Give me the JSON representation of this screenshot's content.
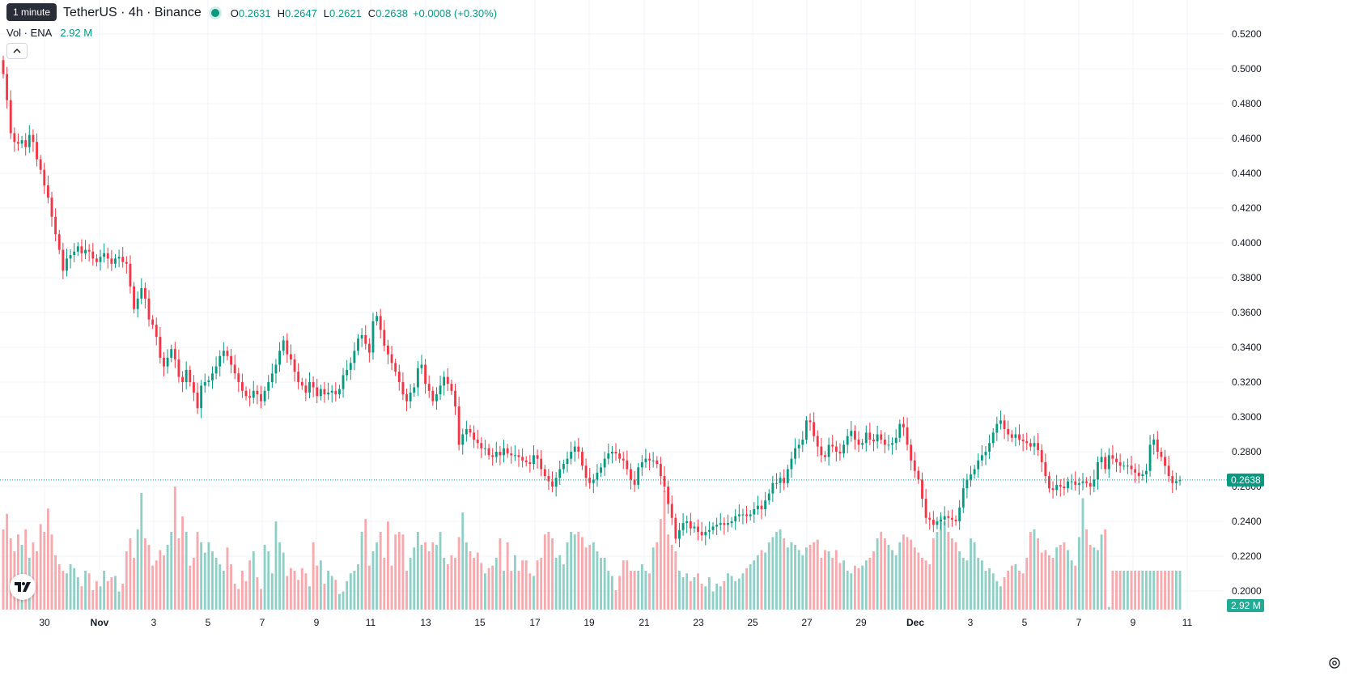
{
  "header": {
    "interval_tooltip": "1 minute",
    "symbol": "TetherUS · 4h · Binance",
    "ohlc": {
      "o_label": "O",
      "o_value": "0.2631",
      "h_label": "H",
      "h_value": "0.2647",
      "l_label": "L",
      "l_value": "0.2621",
      "c_label": "C",
      "c_value": "0.2638",
      "change": "+0.0008 (+0.30%)"
    },
    "volume": {
      "label": "Vol · ENA",
      "value": "2.92 M"
    }
  },
  "colors": {
    "up": "#089981",
    "down": "#f23645",
    "up_vol": "#8fd0c6",
    "down_vol": "#f7a9ad",
    "grid": "#f0f3fa",
    "text": "#131722"
  },
  "chart_data": {
    "type": "candlestick",
    "y_axis": {
      "ticks": [
        "0.5200",
        "0.5000",
        "0.4800",
        "0.4600",
        "0.4400",
        "0.4200",
        "0.4000",
        "0.3800",
        "0.3600",
        "0.3400",
        "0.3200",
        "0.3000",
        "0.2800",
        "0.2600",
        "0.2400",
        "0.2200",
        "0.2000"
      ],
      "range": [
        0.195,
        0.525
      ]
    },
    "x_axis": {
      "labels": [
        "30",
        "Nov",
        "3",
        "5",
        "7",
        "9",
        "11",
        "13",
        "15",
        "17",
        "19",
        "21",
        "23",
        "25",
        "27",
        "29",
        "Dec",
        "3",
        "5",
        "7",
        "9",
        "11"
      ]
    },
    "last_price": "0.2638",
    "last_volume": "2.92 M",
    "closes": [
      0.497,
      0.482,
      0.463,
      0.458,
      0.457,
      0.459,
      0.455,
      0.462,
      0.458,
      0.448,
      0.442,
      0.433,
      0.426,
      0.415,
      0.405,
      0.396,
      0.384,
      0.391,
      0.393,
      0.395,
      0.398,
      0.394,
      0.396,
      0.395,
      0.391,
      0.389,
      0.392,
      0.394,
      0.391,
      0.388,
      0.391,
      0.392,
      0.389,
      0.388,
      0.375,
      0.362,
      0.368,
      0.374,
      0.368,
      0.356,
      0.353,
      0.346,
      0.334,
      0.329,
      0.334,
      0.339,
      0.333,
      0.323,
      0.32,
      0.327,
      0.32,
      0.314,
      0.305,
      0.318,
      0.32,
      0.321,
      0.325,
      0.329,
      0.335,
      0.338,
      0.335,
      0.33,
      0.325,
      0.32,
      0.315,
      0.312,
      0.311,
      0.315,
      0.313,
      0.309,
      0.315,
      0.32,
      0.325,
      0.33,
      0.338,
      0.344,
      0.336,
      0.333,
      0.326,
      0.32,
      0.318,
      0.314,
      0.32,
      0.317,
      0.312,
      0.316,
      0.313,
      0.314,
      0.315,
      0.313,
      0.316,
      0.324,
      0.327,
      0.331,
      0.338,
      0.345,
      0.347,
      0.342,
      0.337,
      0.355,
      0.358,
      0.35,
      0.341,
      0.336,
      0.331,
      0.326,
      0.32,
      0.313,
      0.309,
      0.314,
      0.317,
      0.328,
      0.33,
      0.319,
      0.315,
      0.309,
      0.313,
      0.318,
      0.323,
      0.319,
      0.315,
      0.306,
      0.284,
      0.29,
      0.293,
      0.291,
      0.287,
      0.285,
      0.282,
      0.282,
      0.278,
      0.277,
      0.28,
      0.278,
      0.282,
      0.279,
      0.278,
      0.278,
      0.277,
      0.275,
      0.274,
      0.273,
      0.278,
      0.276,
      0.27,
      0.266,
      0.263,
      0.26,
      0.265,
      0.27,
      0.273,
      0.276,
      0.28,
      0.283,
      0.28,
      0.272,
      0.265,
      0.262,
      0.264,
      0.268,
      0.271,
      0.276,
      0.279,
      0.28,
      0.279,
      0.276,
      0.275,
      0.27,
      0.264,
      0.261,
      0.271,
      0.274,
      0.276,
      0.275,
      0.275,
      0.273,
      0.266,
      0.26,
      0.25,
      0.242,
      0.23,
      0.235,
      0.239,
      0.24,
      0.236,
      0.237,
      0.234,
      0.232,
      0.234,
      0.235,
      0.237,
      0.238,
      0.239,
      0.238,
      0.239,
      0.24,
      0.243,
      0.244,
      0.244,
      0.243,
      0.244,
      0.247,
      0.249,
      0.247,
      0.252,
      0.256,
      0.262,
      0.262,
      0.265,
      0.262,
      0.27,
      0.276,
      0.282,
      0.284,
      0.287,
      0.298,
      0.297,
      0.289,
      0.283,
      0.278,
      0.277,
      0.284,
      0.283,
      0.28,
      0.279,
      0.284,
      0.289,
      0.292,
      0.287,
      0.284,
      0.285,
      0.291,
      0.287,
      0.286,
      0.29,
      0.287,
      0.284,
      0.284,
      0.285,
      0.288,
      0.296,
      0.294,
      0.284,
      0.275,
      0.269,
      0.264,
      0.253,
      0.242,
      0.241,
      0.238,
      0.24,
      0.241,
      0.243,
      0.242,
      0.241,
      0.24,
      0.248,
      0.259,
      0.264,
      0.267,
      0.27,
      0.275,
      0.278,
      0.28,
      0.285,
      0.291,
      0.296,
      0.298,
      0.293,
      0.29,
      0.288,
      0.29,
      0.287,
      0.286,
      0.285,
      0.283,
      0.285,
      0.281,
      0.274,
      0.266,
      0.259,
      0.258,
      0.261,
      0.26,
      0.259,
      0.263,
      0.263,
      0.261,
      0.262,
      0.263,
      0.262,
      0.26,
      0.264,
      0.274,
      0.277,
      0.27,
      0.278,
      0.276,
      0.274,
      0.272,
      0.272,
      0.272,
      0.27,
      0.268,
      0.266,
      0.267,
      0.269,
      0.284,
      0.287,
      0.28,
      0.277,
      0.272,
      0.266,
      0.262,
      0.2631,
      0.2638
    ],
    "volume_bars": [
      0.62,
      0.74,
      0.55,
      0.45,
      0.58,
      0.5,
      0.62,
      0.4,
      0.52,
      0.45,
      0.66,
      0.6,
      0.78,
      0.58,
      0.42,
      0.35,
      0.3,
      0.28,
      0.35,
      0.32,
      0.25,
      0.18,
      0.3,
      0.28,
      0.15,
      0.22,
      0.18,
      0.3,
      0.22,
      0.25,
      0.26,
      0.14,
      0.2,
      0.45,
      0.55,
      0.4,
      0.62,
      0.9,
      0.55,
      0.5,
      0.34,
      0.38,
      0.46,
      0.42,
      0.5,
      0.6,
      0.95,
      0.55,
      0.72,
      0.6,
      0.34,
      0.4,
      0.6,
      0.52,
      0.44,
      0.52,
      0.45,
      0.4,
      0.35,
      0.3,
      0.48,
      0.35,
      0.2,
      0.16,
      0.3,
      0.22,
      0.38,
      0.45,
      0.25,
      0.16,
      0.5,
      0.45,
      0.28,
      0.68,
      0.52,
      0.44,
      0.26,
      0.32,
      0.3,
      0.23,
      0.32,
      0.28,
      0.18,
      0.52,
      0.34,
      0.38,
      0.2,
      0.3,
      0.26,
      0.23,
      0.12,
      0.14,
      0.22,
      0.28,
      0.3,
      0.35,
      0.6,
      0.7,
      0.34,
      0.45,
      0.52,
      0.6,
      0.4,
      0.68,
      0.34,
      0.58,
      0.6,
      0.58,
      0.3,
      0.4,
      0.48,
      0.6,
      0.5,
      0.52,
      0.45,
      0.52,
      0.5,
      0.6,
      0.4,
      0.35,
      0.42,
      0.4,
      0.56,
      0.75,
      0.52,
      0.45,
      0.4,
      0.44,
      0.36,
      0.28,
      0.32,
      0.34,
      0.4,
      0.55,
      0.3,
      0.52,
      0.3,
      0.42,
      0.3,
      0.38,
      0.38,
      0.28,
      0.26,
      0.38,
      0.4,
      0.58,
      0.6,
      0.55,
      0.4,
      0.42,
      0.35,
      0.52,
      0.6,
      0.58,
      0.6,
      0.56,
      0.48,
      0.5,
      0.52,
      0.45,
      0.4,
      0.4,
      0.3,
      0.26,
      0.15,
      0.26,
      0.38,
      0.38,
      0.3,
      0.3,
      0.3,
      0.35,
      0.3,
      0.28,
      0.48,
      0.52,
      0.7,
      0.92,
      0.58,
      0.5,
      0.45,
      0.3,
      0.25,
      0.28,
      0.22,
      0.25,
      0.28,
      0.2,
      0.18,
      0.25,
      0.14,
      0.2,
      0.18,
      0.22,
      0.28,
      0.26,
      0.22,
      0.24,
      0.28,
      0.32,
      0.35,
      0.38,
      0.42,
      0.46,
      0.44,
      0.52,
      0.56,
      0.6,
      0.62,
      0.55,
      0.48,
      0.52,
      0.5,
      0.46,
      0.42,
      0.48,
      0.5,
      0.52,
      0.54,
      0.4,
      0.46,
      0.45,
      0.4,
      0.46,
      0.36,
      0.38,
      0.3,
      0.28,
      0.34,
      0.32,
      0.34,
      0.38,
      0.4,
      0.45,
      0.55,
      0.6,
      0.55,
      0.5,
      0.46,
      0.42,
      0.52,
      0.58,
      0.56,
      0.54,
      0.48,
      0.44,
      0.4,
      0.38,
      0.35,
      0.55,
      0.6,
      0.72,
      0.68,
      0.6,
      0.55,
      0.52,
      0.45,
      0.4,
      0.38,
      0.55,
      0.52,
      0.4,
      0.38,
      0.3,
      0.32,
      0.28,
      0.22,
      0.18,
      0.25,
      0.3,
      0.34,
      0.35,
      0.3,
      0.28,
      0.4,
      0.6,
      0.62,
      0.55,
      0.44,
      0.46,
      0.42,
      0.4,
      0.48,
      0.5,
      0.52,
      0.46,
      0.38,
      0.34,
      0.56,
      0.86,
      0.62,
      0.5,
      0.48,
      0.46,
      0.58,
      0.62,
      0.02
    ]
  }
}
